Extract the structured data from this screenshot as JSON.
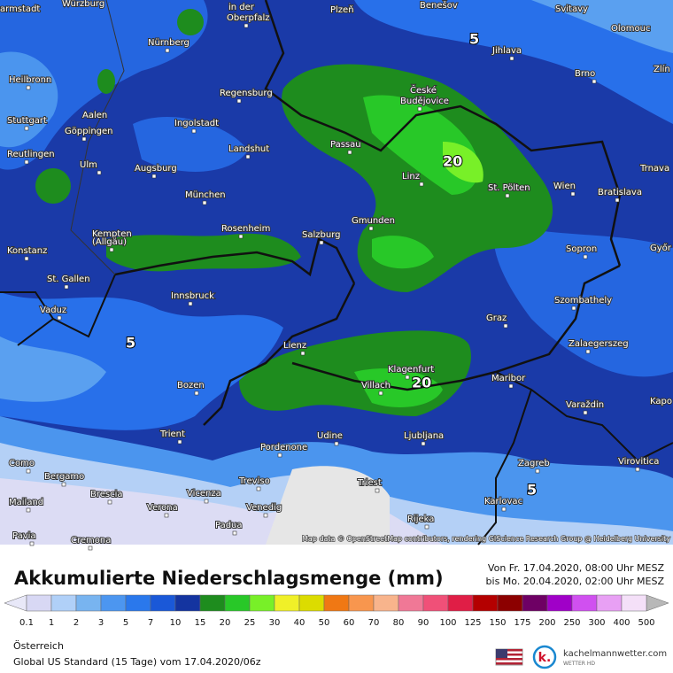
{
  "map": {
    "cities": [
      "armstadt",
      "Würzburg",
      "in der",
      "Oberpfalz",
      "Plzeň",
      "Benešov",
      "Svitavy",
      "Olomouc",
      "Nürnberg",
      "Jihlava",
      "Heilbronn",
      "Regensburg",
      "České",
      "Budějovice",
      "Brno",
      "Zlín",
      "Aalen",
      "Stuttgart",
      "Ingolstadt",
      "Göppingen",
      "Passau",
      "Landshut",
      "Reutlingen",
      "Ulm",
      "Augsburg",
      "Trnava",
      "Linz",
      "St. Pölten",
      "Wien",
      "Bratislava",
      "München",
      "Gmunden",
      "Kempten",
      "(Allgäu)",
      "Rosenheim",
      "Salzburg",
      "Konstanz",
      "Sopron",
      "Győr",
      "St. Gallen",
      "Innsbruck",
      "Szombathely",
      "Vaduz",
      "Graz",
      "Lienz",
      "Zalaegerszeg",
      "Klagenfurt",
      "Maribor",
      "Bozen",
      "Villach",
      "Varaždin",
      "Kapo",
      "Trient",
      "Udine",
      "Ljubljana",
      "Pordenone",
      "Como",
      "Zagreb",
      "Virovitica",
      "Bergamo",
      "Triest",
      "Treviso",
      "Brescia",
      "Vicenza",
      "Mailand",
      "Karlovac",
      "Verona",
      "Venedig",
      "Rijeka",
      "Padua",
      "Pavia",
      "Cremona"
    ],
    "contour_labels": [
      "20",
      "5",
      "5",
      "20",
      "5"
    ],
    "attribution": "Map data © OpenStreetMap contributors, rendering GIScience Research Group @ Heidelberg University"
  },
  "legend": {
    "title": "Akkumulierte Niederschlagsmenge (mm)",
    "period": [
      "Von Fr. 17.04.2020, 08:00 Uhr MESZ",
      "bis Mo. 20.04.2020, 02:00 Uhr MESZ"
    ],
    "labels": [
      "0.1",
      "1",
      "2",
      "3",
      "5",
      "7",
      "10",
      "15",
      "20",
      "25",
      "30",
      "40",
      "50",
      "60",
      "70",
      "80",
      "90",
      "100",
      "125",
      "150",
      "175",
      "200",
      "250",
      "300",
      "400",
      "500"
    ],
    "colors": [
      "#d8d8f4",
      "#b0d0f8",
      "#78b4f0",
      "#4c96f0",
      "#2a78ec",
      "#1a58d8",
      "#1434a0",
      "#1e8c1e",
      "#28c828",
      "#78f028",
      "#f0f028",
      "#dcdc00",
      "#f07814",
      "#f8964e",
      "#f8b48c",
      "#f07896",
      "#f05078",
      "#e01e46",
      "#b40000",
      "#8c0000",
      "#6e0064",
      "#a000c8",
      "#d050f0",
      "#e8a0f4",
      "#f4e0f8"
    ],
    "under_color": "#e8e8f8",
    "over_color": "#b8b8b8"
  },
  "footer": {
    "region": "Österreich",
    "model": "Global US Standard (15 Tage) vom 17.04.2020/06z",
    "brand": "kachelmannwetter.com",
    "brand_sub": "WETTER HD"
  }
}
